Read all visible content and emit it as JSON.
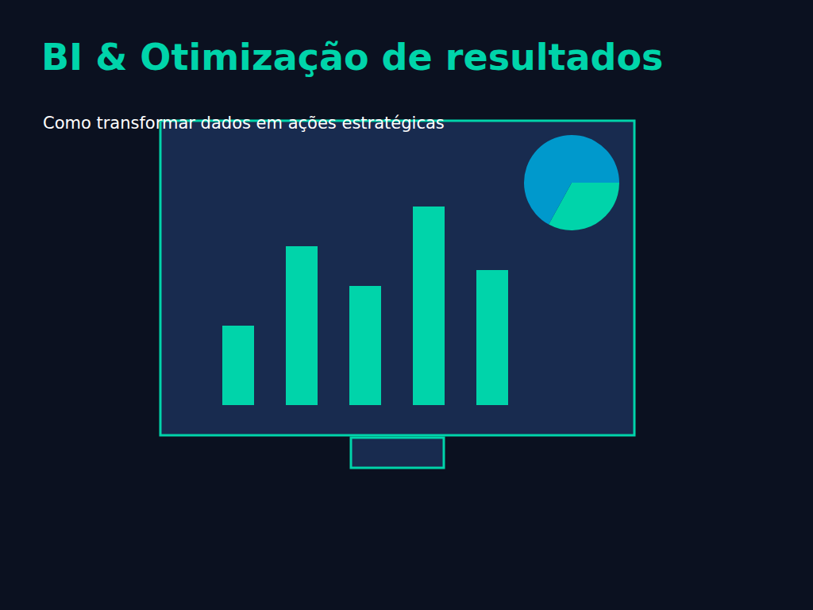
{
  "chart_data": [
    {
      "type": "bar",
      "title": "BI & Otimização de resultados",
      "subtitle": "Como transformar dados em ações estratégicas",
      "categories": [
        null,
        null,
        null,
        null,
        null
      ],
      "values": [
        100,
        200,
        150,
        250,
        170
      ],
      "color": "#00d4aa",
      "ylim": [
        0,
        300
      ],
      "grid": false,
      "tick_labels": false
    },
    {
      "type": "pie",
      "values": [
        33,
        67
      ],
      "colors": [
        "#00d4aa",
        "#0099cc"
      ]
    }
  ]
}
